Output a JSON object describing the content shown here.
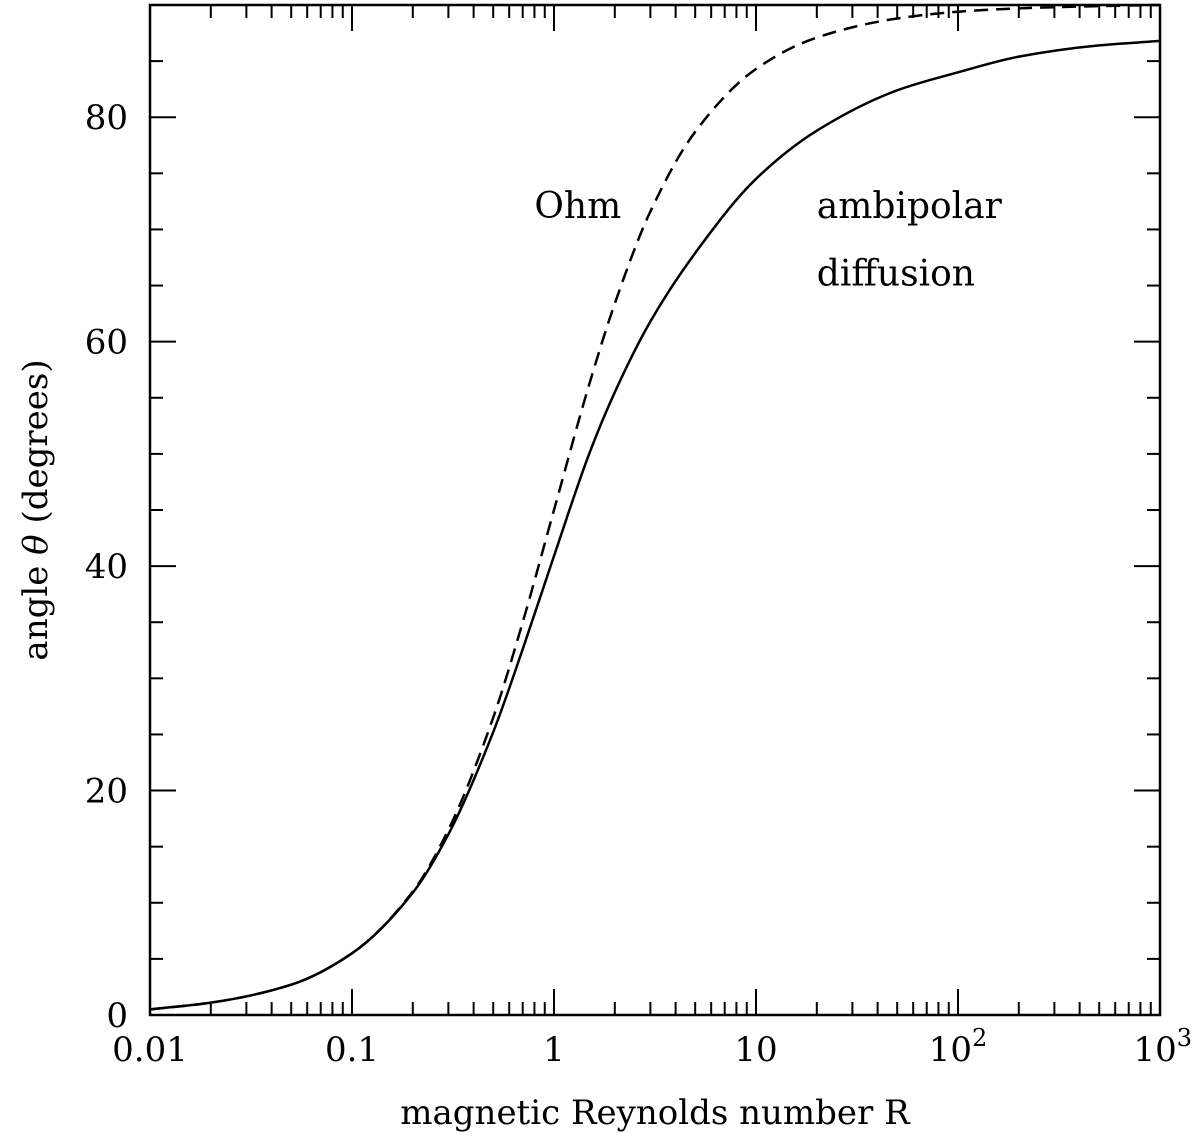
{
  "chart_data": {
    "type": "line",
    "xlabel": "magnetic Reynolds number R",
    "ylabel": "angle θ (degrees)",
    "ylabel_parts": {
      "prefix": "angle ",
      "symbol": "θ",
      "suffix": " (degrees)"
    },
    "x_scale": "log",
    "xlim": [
      0.01,
      1000
    ],
    "ylim": [
      0,
      90
    ],
    "x_ticks": [
      {
        "value": 0.01,
        "base": "0.01",
        "exp": ""
      },
      {
        "value": 0.1,
        "base": "0.1",
        "exp": ""
      },
      {
        "value": 1,
        "base": "1",
        "exp": ""
      },
      {
        "value": 10,
        "base": "10",
        "exp": ""
      },
      {
        "value": 100,
        "base": "10",
        "exp": "2"
      },
      {
        "value": 1000,
        "base": "10",
        "exp": "3"
      }
    ],
    "y_ticks": [
      {
        "value": 0,
        "label": "0"
      },
      {
        "value": 20,
        "label": "20"
      },
      {
        "value": 40,
        "label": "40"
      },
      {
        "value": 60,
        "label": "60"
      },
      {
        "value": 80,
        "label": "80"
      }
    ],
    "grid": false,
    "series": [
      {
        "style": "solid",
        "x": [
          0.01,
          0.02,
          0.05,
          0.1,
          0.2,
          0.3,
          0.5,
          0.7,
          1,
          1.5,
          2,
          3,
          5,
          10,
          20,
          50,
          100,
          200,
          500,
          1000
        ],
        "y": [
          0.5,
          1.1,
          2.7,
          5.5,
          10.9,
          16.1,
          25.2,
          32.6,
          40.9,
          50.1,
          55.5,
          61.8,
          67.9,
          74.5,
          78.8,
          82.4,
          84.0,
          85.4,
          86.4,
          86.8
        ]
      },
      {
        "style": "dashed",
        "x": [
          0.01,
          0.02,
          0.05,
          0.1,
          0.2,
          0.3,
          0.5,
          0.7,
          1,
          1.5,
          2,
          3,
          5,
          10,
          20,
          50,
          100,
          200,
          500,
          1000
        ],
        "y": [
          0.5,
          1.1,
          2.7,
          5.5,
          11.0,
          16.5,
          26.5,
          35.0,
          45.0,
          56.3,
          63.4,
          71.6,
          78.7,
          84.3,
          87.1,
          88.8,
          89.4,
          89.7,
          89.9,
          90.0
        ]
      }
    ],
    "annotations": [
      {
        "text": "Ohm",
        "x": 0.8,
        "y": 71
      },
      {
        "text": "ambipolar",
        "x": 20,
        "y": 71
      },
      {
        "text": "diffusion",
        "x": 20,
        "y": 65
      }
    ]
  }
}
